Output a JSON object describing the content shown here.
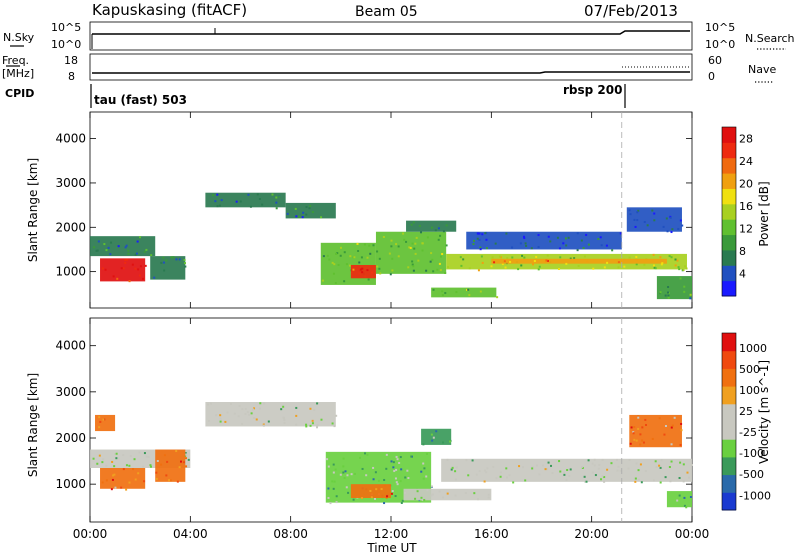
{
  "header": {
    "station": "Kapuskasing (fitACF)",
    "beam": "Beam 05",
    "date": "07/Feb/2013"
  },
  "sky_panel": {
    "left_label": "N.Sky",
    "left_ticks": [
      "10^5",
      "10^0"
    ],
    "right_label": "N.Search",
    "right_ticks": [
      "10^5",
      "10^0"
    ]
  },
  "freq_panel": {
    "left_label_1": "Freq.",
    "left_label_2": "[MHz]",
    "left_ticks": [
      "18",
      "8"
    ],
    "right_label": "Nave",
    "right_ticks": [
      "60",
      "0"
    ]
  },
  "cpid_panel": {
    "label": "CPID",
    "modes": [
      {
        "name": "tau (fast) 503",
        "start": "00:00"
      },
      {
        "name": "rbsp 200",
        "start": "21:00"
      }
    ]
  },
  "x_axis": {
    "label": "Time UT",
    "ticks": [
      "00:00",
      "04:00",
      "08:00",
      "12:00",
      "16:00",
      "20:00",
      "00:00"
    ]
  },
  "chart_data": [
    {
      "type": "heatmap",
      "title": "",
      "ylabel": "Slant Range [km]",
      "yticks": [
        1000,
        2000,
        3000,
        4000
      ],
      "ylim": [
        180,
        4600
      ],
      "xlim_hours": [
        0,
        24
      ],
      "colorbar": {
        "label": "Power [dB]",
        "ticks": [
          "4",
          "8",
          "12",
          "16",
          "20",
          "24",
          "28"
        ],
        "colors": [
          "#1a1aff",
          "#2050c0",
          "#2a7a50",
          "#3a9a3a",
          "#60c030",
          "#a8d020",
          "#f0e010",
          "#f0a010",
          "#f06a10",
          "#ee2a10",
          "#e01010"
        ]
      },
      "regions": [
        {
          "t0": 0.0,
          "t1": 2.6,
          "r0": 1350,
          "r1": 1800,
          "level": 2
        },
        {
          "t0": 0.4,
          "t1": 2.2,
          "r0": 780,
          "r1": 1300,
          "level": 10
        },
        {
          "t0": 2.4,
          "t1": 3.8,
          "r0": 820,
          "r1": 1350,
          "level": 2
        },
        {
          "t0": 4.6,
          "t1": 7.8,
          "r0": 2450,
          "r1": 2780,
          "level": 2
        },
        {
          "t0": 7.8,
          "t1": 9.8,
          "r0": 2200,
          "r1": 2550,
          "level": 2
        },
        {
          "t0": 9.2,
          "t1": 11.4,
          "r0": 700,
          "r1": 1650,
          "level": 4
        },
        {
          "t0": 10.4,
          "t1": 11.4,
          "r0": 850,
          "r1": 1150,
          "level": 9
        },
        {
          "t0": 11.4,
          "t1": 14.2,
          "r0": 950,
          "r1": 1900,
          "level": 4
        },
        {
          "t0": 12.6,
          "t1": 14.6,
          "r0": 1900,
          "r1": 2150,
          "level": 2
        },
        {
          "t0": 13.6,
          "t1": 16.2,
          "r0": 420,
          "r1": 640,
          "level": 4
        },
        {
          "t0": 14.2,
          "t1": 23.8,
          "r0": 1050,
          "r1": 1400,
          "level": 5
        },
        {
          "t0": 16.0,
          "t1": 23.0,
          "r0": 1180,
          "r1": 1290,
          "level": 7
        },
        {
          "t0": 15.0,
          "t1": 21.2,
          "r0": 1500,
          "r1": 1900,
          "level": 1
        },
        {
          "t0": 21.4,
          "t1": 23.6,
          "r0": 1900,
          "r1": 2450,
          "level": 1
        },
        {
          "t0": 22.6,
          "t1": 24.0,
          "r0": 380,
          "r1": 900,
          "level": 3
        }
      ]
    },
    {
      "type": "heatmap",
      "title": "",
      "ylabel": "Slant Range [km]",
      "yticks": [
        1000,
        2000,
        3000,
        4000
      ],
      "ylim": [
        180,
        4600
      ],
      "xlim_hours": [
        0,
        24
      ],
      "colorbar": {
        "label": "Velocity [m s^-1]",
        "ticks": [
          "1000",
          "500",
          "100",
          "25",
          "-25",
          "-100",
          "-500",
          "-1000"
        ],
        "colors": [
          "#1a3ad0",
          "#2a6aaa",
          "#3a9a5a",
          "#6ad040",
          "#c8c8c0",
          "#c8c8c0",
          "#f0a020",
          "#f07010",
          "#f04a10",
          "#e01010"
        ]
      },
      "regions": [
        {
          "t0": 0.0,
          "t1": 4.0,
          "r0": 1350,
          "r1": 1750,
          "level": 4
        },
        {
          "t0": 0.4,
          "t1": 2.2,
          "r0": 900,
          "r1": 1350,
          "level": 7
        },
        {
          "t0": 0.2,
          "t1": 1.0,
          "r0": 2150,
          "r1": 2500,
          "level": 7
        },
        {
          "t0": 2.6,
          "t1": 3.8,
          "r0": 1050,
          "r1": 1750,
          "level": 7
        },
        {
          "t0": 4.6,
          "t1": 9.8,
          "r0": 2250,
          "r1": 2780,
          "level": 4
        },
        {
          "t0": 9.4,
          "t1": 13.6,
          "r0": 600,
          "r1": 1700,
          "level": 3
        },
        {
          "t0": 10.4,
          "t1": 12.0,
          "r0": 700,
          "r1": 1000,
          "level": 7
        },
        {
          "t0": 13.2,
          "t1": 14.4,
          "r0": 1850,
          "r1": 2200,
          "level": 2
        },
        {
          "t0": 14.0,
          "t1": 24.0,
          "r0": 1050,
          "r1": 1550,
          "level": 4
        },
        {
          "t0": 12.5,
          "t1": 16.0,
          "r0": 650,
          "r1": 900,
          "level": 4
        },
        {
          "t0": 21.5,
          "t1": 23.6,
          "r0": 1800,
          "r1": 2500,
          "level": 7
        },
        {
          "t0": 23.0,
          "t1": 24.0,
          "r0": 500,
          "r1": 850,
          "level": 3
        }
      ]
    }
  ]
}
